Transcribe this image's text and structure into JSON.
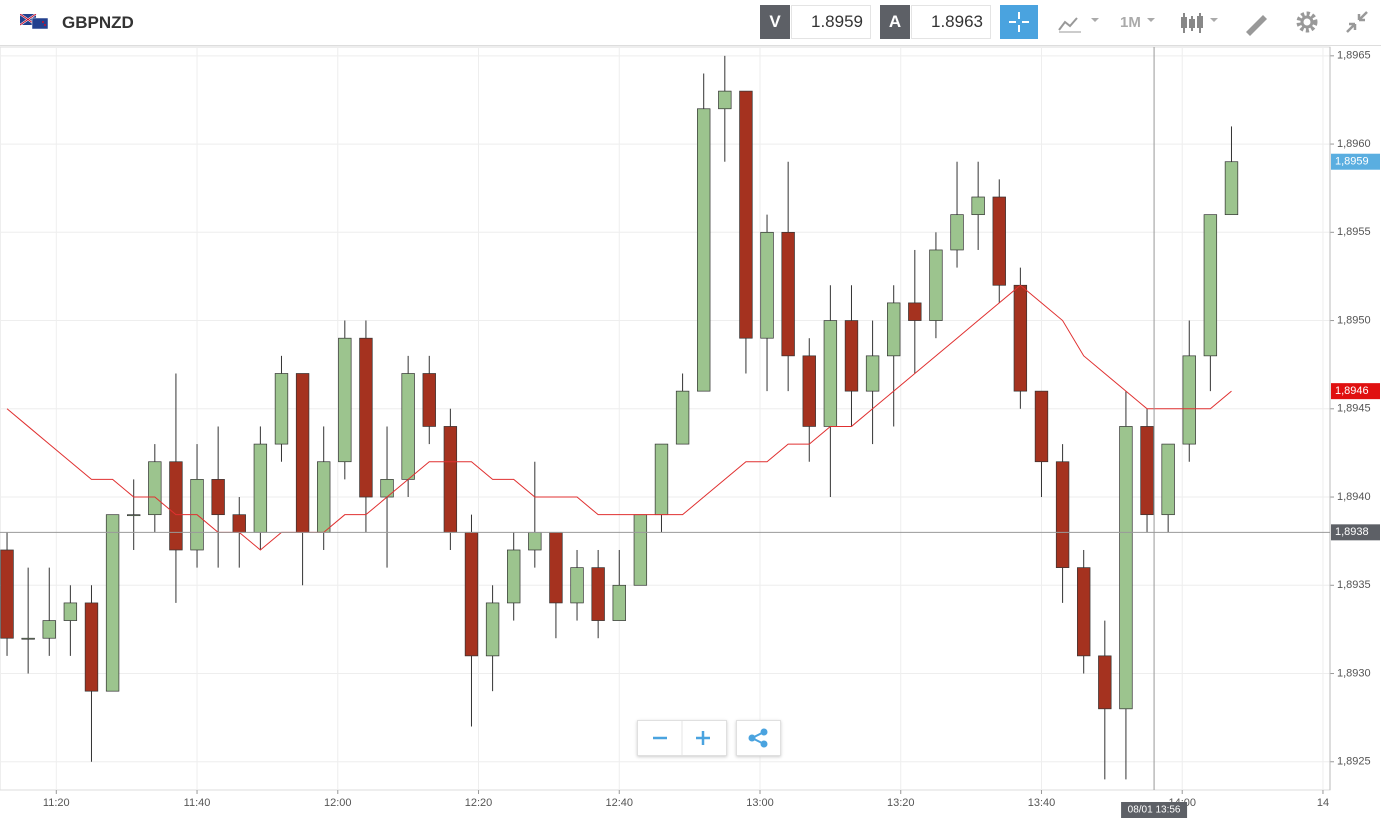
{
  "header": {
    "symbol": "GBPNZD",
    "sell_label": "V",
    "sell_price": 1.8959,
    "buy_label": "A",
    "buy_price": 1.8963,
    "timeframe": "1M"
  },
  "chart_data": {
    "type": "candlestick",
    "x": [
      "11:13",
      "11:16",
      "11:19",
      "11:22",
      "11:25",
      "11:28",
      "11:31",
      "11:34",
      "11:37",
      "11:40",
      "11:43",
      "11:46",
      "11:49",
      "11:52",
      "11:55",
      "11:58",
      "12:01",
      "12:04",
      "12:07",
      "12:10",
      "12:13",
      "12:16",
      "12:19",
      "12:22",
      "12:25",
      "12:28",
      "12:31",
      "12:34",
      "12:37",
      "12:40",
      "12:43",
      "12:46",
      "12:49",
      "12:52",
      "12:55",
      "12:58",
      "13:01",
      "13:04",
      "13:07",
      "13:10",
      "13:13",
      "13:16",
      "13:19",
      "13:22",
      "13:25",
      "13:28",
      "13:31",
      "13:34",
      "13:37",
      "13:40",
      "13:43",
      "13:46",
      "13:49",
      "13:52",
      "13:55",
      "13:58",
      "14:01",
      "14:04",
      "14:07"
    ],
    "open": [
      1.8937,
      1.8932,
      1.8932,
      1.8933,
      1.8934,
      1.8929,
      1.8939,
      1.8939,
      1.8942,
      1.8937,
      1.8941,
      1.8939,
      1.8938,
      1.8943,
      1.8947,
      1.8938,
      1.8942,
      1.8949,
      1.894,
      1.8941,
      1.8947,
      1.8944,
      1.8938,
      1.8931,
      1.8934,
      1.8937,
      1.8938,
      1.8934,
      1.8936,
      1.8933,
      1.8935,
      1.8939,
      1.8943,
      1.8946,
      1.8962,
      1.8963,
      1.8949,
      1.8955,
      1.8948,
      1.8944,
      1.895,
      1.8946,
      1.8948,
      1.8951,
      1.895,
      1.8954,
      1.8956,
      1.8957,
      1.8952,
      1.8946,
      1.8942,
      1.8936,
      1.8931,
      1.8928,
      1.8944,
      1.8939,
      1.8943,
      1.8948,
      1.8956
    ],
    "high": [
      1.8938,
      1.8936,
      1.8936,
      1.8935,
      1.8935,
      1.8939,
      1.8941,
      1.8943,
      1.8947,
      1.8943,
      1.8944,
      1.894,
      1.8944,
      1.8948,
      1.8947,
      1.8944,
      1.895,
      1.895,
      1.8944,
      1.8948,
      1.8948,
      1.8945,
      1.8939,
      1.8935,
      1.8938,
      1.8942,
      1.8938,
      1.8937,
      1.8937,
      1.8937,
      1.8939,
      1.8943,
      1.8947,
      1.8964,
      1.8965,
      1.8963,
      1.8956,
      1.8959,
      1.8949,
      1.8952,
      1.8952,
      1.895,
      1.8952,
      1.8954,
      1.8955,
      1.8959,
      1.8959,
      1.8958,
      1.8953,
      1.8946,
      1.8943,
      1.8937,
      1.8933,
      1.8946,
      1.8945,
      1.8943,
      1.895,
      1.8956,
      1.8961
    ],
    "low": [
      1.8931,
      1.893,
      1.8931,
      1.8931,
      1.8925,
      1.8929,
      1.8937,
      1.8938,
      1.8934,
      1.8936,
      1.8936,
      1.8936,
      1.8937,
      1.8942,
      1.8935,
      1.8937,
      1.8941,
      1.8938,
      1.8936,
      1.894,
      1.8943,
      1.8937,
      1.8927,
      1.8929,
      1.8933,
      1.8936,
      1.8932,
      1.8933,
      1.8932,
      1.8933,
      1.8935,
      1.8938,
      1.8943,
      1.8946,
      1.8959,
      1.8947,
      1.8946,
      1.8946,
      1.8942,
      1.894,
      1.8944,
      1.8943,
      1.8944,
      1.8947,
      1.8949,
      1.8953,
      1.8954,
      1.8951,
      1.8945,
      1.894,
      1.8934,
      1.893,
      1.8924,
      1.8924,
      1.8938,
      1.8938,
      1.8942,
      1.8946,
      1.8956
    ],
    "close": [
      1.8932,
      1.8932,
      1.8933,
      1.8934,
      1.8929,
      1.8939,
      1.8939,
      1.8942,
      1.8937,
      1.8941,
      1.8939,
      1.8938,
      1.8943,
      1.8947,
      1.8938,
      1.8942,
      1.8949,
      1.894,
      1.8941,
      1.8947,
      1.8944,
      1.8938,
      1.8931,
      1.8934,
      1.8937,
      1.8938,
      1.8934,
      1.8936,
      1.8933,
      1.8935,
      1.8939,
      1.8943,
      1.8946,
      1.8962,
      1.8963,
      1.8949,
      1.8955,
      1.8948,
      1.8944,
      1.895,
      1.8946,
      1.8948,
      1.8951,
      1.895,
      1.8954,
      1.8956,
      1.8957,
      1.8952,
      1.8946,
      1.8942,
      1.8936,
      1.8931,
      1.8928,
      1.8944,
      1.8939,
      1.8943,
      1.8948,
      1.8956,
      1.8959
    ],
    "up_color": "#9cc48e",
    "down_color": "#a5321f",
    "ma": {
      "color": "#e03030",
      "values": [
        1.8945,
        1.8944,
        1.8943,
        1.8942,
        1.8941,
        1.8941,
        1.894,
        1.894,
        1.8939,
        1.8939,
        1.8938,
        1.8938,
        1.8937,
        1.8938,
        1.8938,
        1.8938,
        1.8939,
        1.8939,
        1.894,
        1.8941,
        1.8942,
        1.8942,
        1.8942,
        1.8941,
        1.8941,
        1.894,
        1.894,
        1.894,
        1.8939,
        1.8939,
        1.8939,
        1.8939,
        1.8939,
        1.894,
        1.8941,
        1.8942,
        1.8942,
        1.8943,
        1.8943,
        1.8944,
        1.8944,
        1.8945,
        1.8946,
        1.8947,
        1.8948,
        1.8949,
        1.895,
        1.8951,
        1.8952,
        1.8951,
        1.895,
        1.8948,
        1.8947,
        1.8946,
        1.8945,
        1.8945,
        1.8945,
        1.8945,
        1.8946
      ]
    },
    "xlim": [
      "11:12",
      "14:21"
    ],
    "xticks": [
      "11:20",
      "11:40",
      "12:00",
      "12:20",
      "12:40",
      "13:00",
      "13:20",
      "13:40",
      "14:00",
      {
        "value": "14:20",
        "label": "14"
      }
    ],
    "ylim": [
      1.89234,
      1.89655
    ],
    "yticks": [
      {
        "value": 1.8925,
        "label": "1,8925"
      },
      {
        "value": 1.893,
        "label": "1,8930"
      },
      {
        "value": 1.8935,
        "label": "1,8935"
      },
      {
        "value": 1.894,
        "label": "1,8940"
      },
      {
        "value": 1.8945,
        "label": "1,8945"
      },
      {
        "value": 1.895,
        "label": "1,8950"
      },
      {
        "value": 1.8955,
        "label": "1,8955"
      },
      {
        "value": 1.896,
        "label": "1,8960"
      },
      {
        "value": 1.8965,
        "label": "1,8965"
      }
    ],
    "grid": true,
    "price_markers": [
      {
        "value": 1.8959,
        "label": "1,8959",
        "color": "#5aaee0"
      },
      {
        "value": 1.8946,
        "label": "1,8946",
        "color": "#e01010"
      }
    ],
    "crosshair": {
      "x": "13:56",
      "x_label": "08/01 13:56",
      "y": {
        "value": 1.8938,
        "label": "1,8938"
      }
    }
  }
}
